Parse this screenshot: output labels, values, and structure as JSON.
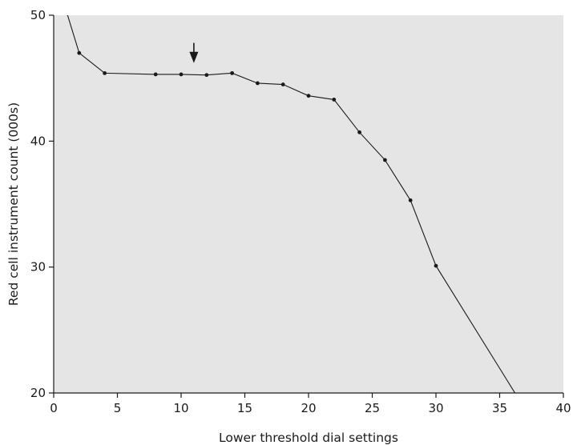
{
  "chart_data": {
    "type": "line",
    "title": "",
    "xlabel": "Lower threshold dial settings",
    "ylabel": "Red cell instrument count (000s)",
    "xlim": [
      0,
      40
    ],
    "ylim": [
      20,
      50
    ],
    "x_ticks": [
      0,
      5,
      10,
      15,
      20,
      25,
      30,
      35,
      40
    ],
    "y_ticks": [
      20,
      30,
      40,
      50
    ],
    "grid": false,
    "plot_background": "#e5e5e5",
    "line_color": "#1a1a1a",
    "series": [
      {
        "points": [
          {
            "x": 1,
            "y": 50.3,
            "marker": false
          },
          {
            "x": 2,
            "y": 47.0,
            "marker": true
          },
          {
            "x": 4,
            "y": 45.4,
            "marker": true
          },
          {
            "x": 8,
            "y": 45.3,
            "marker": true
          },
          {
            "x": 10,
            "y": 45.3,
            "marker": true
          },
          {
            "x": 12,
            "y": 45.25,
            "marker": true
          },
          {
            "x": 14,
            "y": 45.4,
            "marker": true
          },
          {
            "x": 16,
            "y": 44.6,
            "marker": true
          },
          {
            "x": 18,
            "y": 44.5,
            "marker": true
          },
          {
            "x": 20,
            "y": 43.6,
            "marker": true
          },
          {
            "x": 22,
            "y": 43.3,
            "marker": true
          },
          {
            "x": 24,
            "y": 40.7,
            "marker": true
          },
          {
            "x": 26,
            "y": 38.5,
            "marker": true
          },
          {
            "x": 28,
            "y": 35.3,
            "marker": true
          },
          {
            "x": 30,
            "y": 30.1,
            "marker": true
          },
          {
            "x": 36.2,
            "y": 20,
            "marker": false
          }
        ]
      }
    ],
    "annotations": [
      {
        "type": "arrow",
        "direction": "down",
        "x": 11,
        "y_from": 47.8,
        "y_to": 46.2
      }
    ]
  }
}
